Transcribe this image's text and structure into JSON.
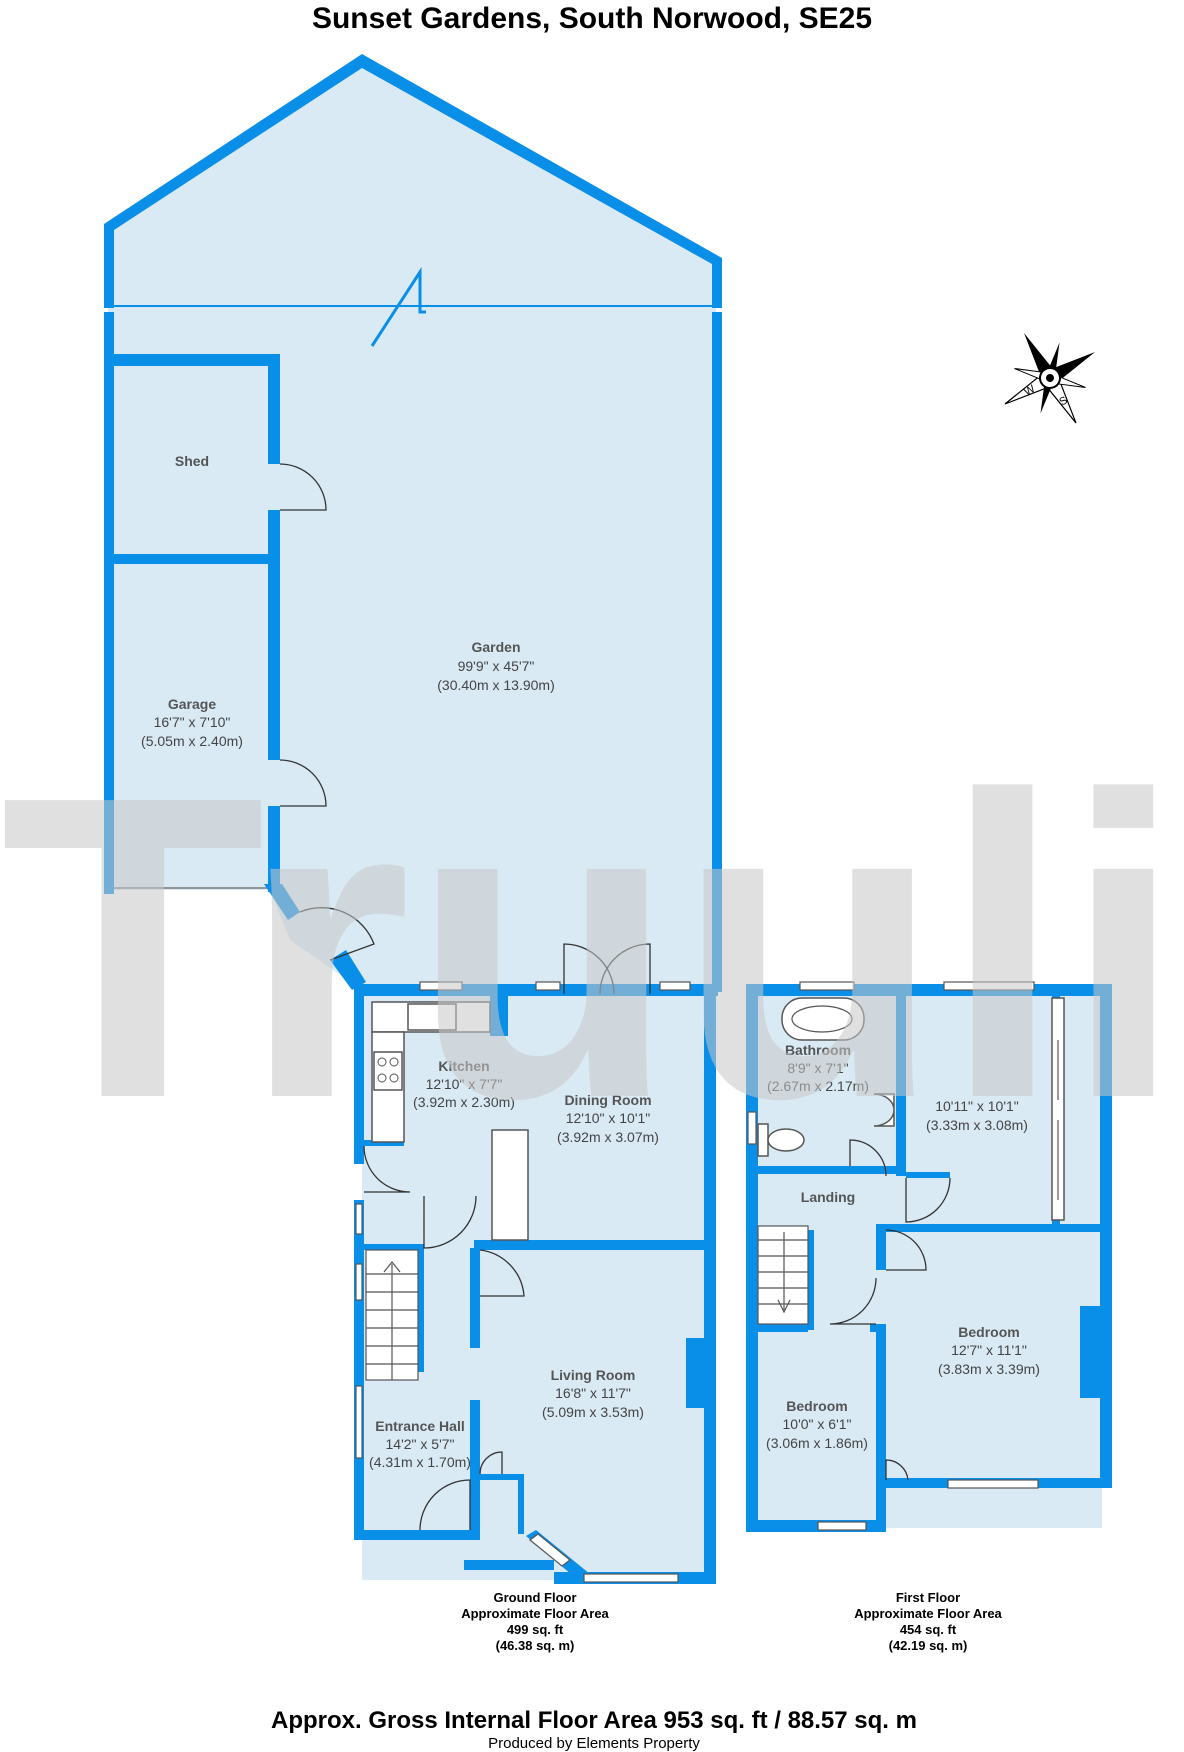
{
  "title": "Sunset Gardens, South Norwood, SE25",
  "watermark": "Truuli",
  "rooms": {
    "garden": {
      "name": "Garden",
      "dim_imperial": "99'9\" x 45'7\"",
      "dim_metric": "(30.40m x 13.90m)"
    },
    "shed": {
      "name": "Shed"
    },
    "garage": {
      "name": "Garage",
      "dim_imperial": "16'7\" x 7'10\"",
      "dim_metric": "(5.05m x 2.40m)"
    },
    "kitchen": {
      "name": "Kitchen",
      "dim_imperial": "12'10\" x 7'7\"",
      "dim_metric": "(3.92m x 2.30m)"
    },
    "dining_room": {
      "name": "Dining Room",
      "dim_imperial": "12'10\" x 10'1\"",
      "dim_metric": "(3.92m x 3.07m)"
    },
    "living_room": {
      "name": "Living Room",
      "dim_imperial": "16'8\" x 11'7\"",
      "dim_metric": "(5.09m x 3.53m)"
    },
    "entrance_hall": {
      "name": "Entrance Hall",
      "dim_imperial": "14'2\" x 5'7\"",
      "dim_metric": "(4.31m x 1.70m)"
    },
    "bathroom": {
      "name": "Bathroom",
      "dim_imperial": "8'9\" x 7'1\"",
      "dim_metric": "(2.67m x 2.17m)"
    },
    "unnamed_room": {
      "dim_imperial": "10'11\" x 10'1\"",
      "dim_metric": "(3.33m x 3.08m)"
    },
    "landing": {
      "name": "Landing"
    },
    "bedroom_large": {
      "name": "Bedroom",
      "dim_imperial": "12'7\" x 11'1\"",
      "dim_metric": "(3.83m x 3.39m)"
    },
    "bedroom_small": {
      "name": "Bedroom",
      "dim_imperial": "10'0\" x 6'1\"",
      "dim_metric": "(3.06m x 1.86m)"
    }
  },
  "floors": {
    "ground": {
      "line1": "Ground Floor",
      "line2": "Approximate Floor Area",
      "line3": "499 sq. ft",
      "line4": "(46.38 sq. m)"
    },
    "first": {
      "line1": "First Floor",
      "line2": "Approximate Floor Area",
      "line3": "454 sq. ft",
      "line4": "(42.19 sq. m)"
    }
  },
  "compass": {
    "labels": [
      "N",
      "E",
      "S",
      "W"
    ]
  },
  "gross_area": "Approx. Gross Internal Floor Area 953 sq. ft / 88.57 sq. m",
  "produced_by": "Produced by Elements Property",
  "colors": {
    "wall": "#0a8fe8",
    "floor": "#d9eaf5",
    "watermark": "#c8c8c8"
  }
}
